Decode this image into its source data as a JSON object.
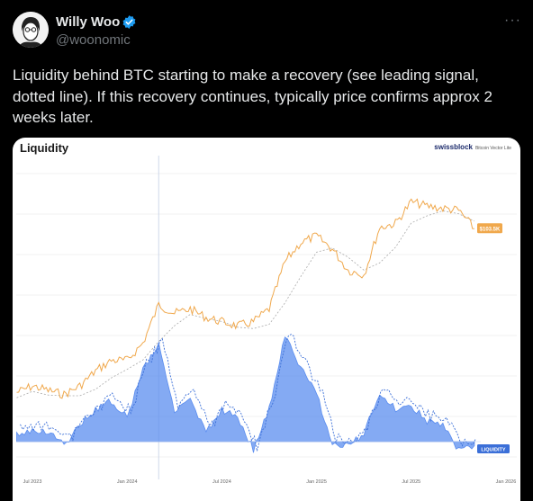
{
  "author": {
    "name": "Willy Woo",
    "handle": "@woonomic",
    "avatar_icon": "avatar-portrait-icon",
    "verified_icon": "verified-badge-icon",
    "verified_color": "#1d9bf0"
  },
  "menu": {
    "label": "···"
  },
  "tweet": {
    "text": "Liquidity behind BTC starting to make a recovery (see leading signal, dotted line). If this recovery continues, typically price confirms approx 2 weeks later."
  },
  "chart_data": {
    "type": "line",
    "title": "Liquidity",
    "brand": "swissblock",
    "brand_sub": "Bitcoin Vector Lite",
    "x_ticks": [
      "Jul 2023",
      "Jan 2024",
      "Jul 2024",
      "Jan 2025",
      "Jul 2025",
      "Jan 2026"
    ],
    "price_label": "$103.5K",
    "liquidity_label": "LIQUIDITY",
    "colors": {
      "price": "#f0a84c",
      "liquidity": "#5b8def",
      "dotted": "#3b6fd8",
      "price_ma": "#aaaaaa"
    },
    "series": [
      {
        "x": [
          "2023-06",
          "2023-07",
          "2023-08",
          "2023-09",
          "2023-10",
          "2023-11",
          "2023-12",
          "2024-01",
          "2024-02",
          "2024-03",
          "2024-04",
          "2024-05",
          "2024-06",
          "2024-07",
          "2024-08",
          "2024-09",
          "2024-10",
          "2024-11",
          "2024-12",
          "2025-01",
          "2025-02",
          "2025-03",
          "2025-04",
          "2025-05",
          "2025-06",
          "2025-07",
          "2025-08",
          "2025-09",
          "2025-10",
          "2025-11"
        ],
        "values": [
          27,
          30,
          28,
          26,
          30,
          37,
          42,
          42,
          50,
          68,
          64,
          66,
          62,
          60,
          58,
          60,
          66,
          88,
          97,
          100,
          94,
          84,
          82,
          104,
          106,
          116,
          114,
          113,
          112,
          103.5
        ]
      },
      {
        "x": [
          "2023-06",
          "2023-07",
          "2023-08",
          "2023-09",
          "2023-10",
          "2023-11",
          "2023-12",
          "2024-01",
          "2024-02",
          "2024-03",
          "2024-04",
          "2024-05",
          "2024-06",
          "2024-07",
          "2024-08",
          "2024-09",
          "2024-10",
          "2024-11",
          "2024-12",
          "2025-01",
          "2025-02",
          "2025-03",
          "2025-04",
          "2025-05",
          "2025-06",
          "2025-07",
          "2025-08",
          "2025-09",
          "2025-10",
          "2025-11"
        ],
        "values": [
          0.1,
          0.15,
          0.12,
          -0.05,
          0.2,
          0.4,
          0.5,
          0.3,
          0.9,
          1.2,
          0.4,
          0.5,
          0.1,
          0.4,
          0.3,
          -0.1,
          0.4,
          1.3,
          0.9,
          0.6,
          -0.05,
          -0.05,
          0.1,
          0.6,
          0.4,
          0.45,
          0.25,
          0.2,
          -0.1,
          -0.05
        ]
      }
    ]
  }
}
